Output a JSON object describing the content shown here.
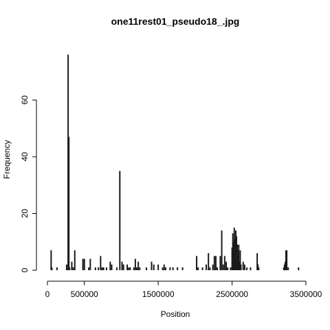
{
  "chart_data": {
    "type": "bar",
    "title": "one11rest01_pseudo18_.jpg",
    "xlabel": "Position",
    "ylabel": "Frequency",
    "xlim": [
      0,
      3500000
    ],
    "ylim": [
      0,
      80
    ],
    "x_ticks": [
      {
        "value": 0,
        "label": "0"
      },
      {
        "value": 500000,
        "label": "500000"
      },
      {
        "value": 1500000,
        "label": "1500000"
      },
      {
        "value": 2500000,
        "label": "2500000"
      },
      {
        "value": 3500000,
        "label": "3500000"
      }
    ],
    "y_ticks": [
      {
        "value": 0,
        "label": "0"
      },
      {
        "value": 20,
        "label": "20"
      },
      {
        "value": 40,
        "label": "40"
      },
      {
        "value": 60,
        "label": "60"
      }
    ],
    "grid": false,
    "bars": [
      {
        "x": 50000,
        "y": 7
      },
      {
        "x": 60000,
        "y": 1
      },
      {
        "x": 130000,
        "y": 1
      },
      {
        "x": 260000,
        "y": 2
      },
      {
        "x": 280000,
        "y": 76
      },
      {
        "x": 290000,
        "y": 47
      },
      {
        "x": 300000,
        "y": 1
      },
      {
        "x": 330000,
        "y": 3
      },
      {
        "x": 350000,
        "y": 1
      },
      {
        "x": 370000,
        "y": 7
      },
      {
        "x": 480000,
        "y": 4
      },
      {
        "x": 500000,
        "y": 4
      },
      {
        "x": 560000,
        "y": 1
      },
      {
        "x": 580000,
        "y": 4
      },
      {
        "x": 650000,
        "y": 1
      },
      {
        "x": 690000,
        "y": 1
      },
      {
        "x": 720000,
        "y": 5
      },
      {
        "x": 740000,
        "y": 1
      },
      {
        "x": 760000,
        "y": 1
      },
      {
        "x": 800000,
        "y": 1
      },
      {
        "x": 850000,
        "y": 3
      },
      {
        "x": 870000,
        "y": 2
      },
      {
        "x": 940000,
        "y": 1
      },
      {
        "x": 980000,
        "y": 35
      },
      {
        "x": 1010000,
        "y": 3
      },
      {
        "x": 1030000,
        "y": 2
      },
      {
        "x": 1080000,
        "y": 2
      },
      {
        "x": 1100000,
        "y": 1
      },
      {
        "x": 1120000,
        "y": 1
      },
      {
        "x": 1170000,
        "y": 1
      },
      {
        "x": 1190000,
        "y": 4
      },
      {
        "x": 1210000,
        "y": 1
      },
      {
        "x": 1230000,
        "y": 3
      },
      {
        "x": 1250000,
        "y": 1
      },
      {
        "x": 1340000,
        "y": 1
      },
      {
        "x": 1410000,
        "y": 3
      },
      {
        "x": 1440000,
        "y": 2
      },
      {
        "x": 1500000,
        "y": 2
      },
      {
        "x": 1560000,
        "y": 1
      },
      {
        "x": 1580000,
        "y": 2
      },
      {
        "x": 1600000,
        "y": 1
      },
      {
        "x": 1660000,
        "y": 1
      },
      {
        "x": 1700000,
        "y": 1
      },
      {
        "x": 1760000,
        "y": 1
      },
      {
        "x": 1830000,
        "y": 1
      },
      {
        "x": 2020000,
        "y": 5
      },
      {
        "x": 2040000,
        "y": 1
      },
      {
        "x": 2100000,
        "y": 1
      },
      {
        "x": 2150000,
        "y": 2
      },
      {
        "x": 2180000,
        "y": 6
      },
      {
        "x": 2200000,
        "y": 1
      },
      {
        "x": 2240000,
        "y": 2
      },
      {
        "x": 2260000,
        "y": 5
      },
      {
        "x": 2280000,
        "y": 5
      },
      {
        "x": 2300000,
        "y": 1
      },
      {
        "x": 2340000,
        "y": 5
      },
      {
        "x": 2360000,
        "y": 14
      },
      {
        "x": 2380000,
        "y": 2
      },
      {
        "x": 2400000,
        "y": 5
      },
      {
        "x": 2420000,
        "y": 3
      },
      {
        "x": 2440000,
        "y": 1
      },
      {
        "x": 2480000,
        "y": 1
      },
      {
        "x": 2500000,
        "y": 8
      },
      {
        "x": 2510000,
        "y": 13
      },
      {
        "x": 2520000,
        "y": 10
      },
      {
        "x": 2530000,
        "y": 15
      },
      {
        "x": 2540000,
        "y": 11
      },
      {
        "x": 2550000,
        "y": 14
      },
      {
        "x": 2560000,
        "y": 12
      },
      {
        "x": 2570000,
        "y": 9
      },
      {
        "x": 2580000,
        "y": 7
      },
      {
        "x": 2590000,
        "y": 9
      },
      {
        "x": 2600000,
        "y": 3
      },
      {
        "x": 2610000,
        "y": 7
      },
      {
        "x": 2620000,
        "y": 2
      },
      {
        "x": 2650000,
        "y": 3
      },
      {
        "x": 2670000,
        "y": 2
      },
      {
        "x": 2700000,
        "y": 1
      },
      {
        "x": 2750000,
        "y": 1
      },
      {
        "x": 2840000,
        "y": 6
      },
      {
        "x": 2850000,
        "y": 2
      },
      {
        "x": 2860000,
        "y": 1
      },
      {
        "x": 3200000,
        "y": 1
      },
      {
        "x": 3210000,
        "y": 2
      },
      {
        "x": 3220000,
        "y": 3
      },
      {
        "x": 3230000,
        "y": 7
      },
      {
        "x": 3240000,
        "y": 7
      },
      {
        "x": 3260000,
        "y": 1
      },
      {
        "x": 3400000,
        "y": 1
      }
    ]
  }
}
